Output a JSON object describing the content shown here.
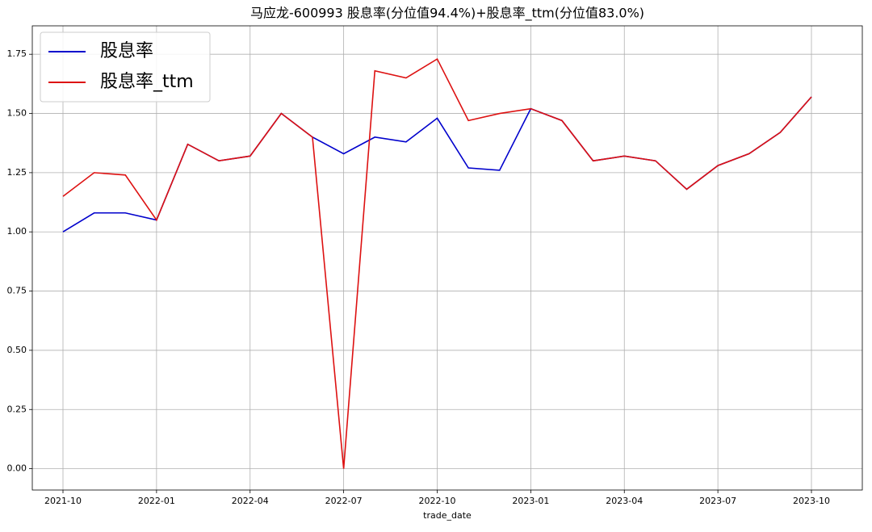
{
  "chart_data": {
    "type": "line",
    "title": "马应龙-600993 股息率(分位值94.4%)+股息率_ttm(分位值83.0%)",
    "xlabel": "trade_date",
    "x": [
      "2021-10",
      "2021-11",
      "2021-12",
      "2022-01",
      "2022-02",
      "2022-03",
      "2022-04",
      "2022-05",
      "2022-06",
      "2022-07",
      "2022-08",
      "2022-09",
      "2022-10",
      "2022-11",
      "2022-12",
      "2023-01",
      "2023-02",
      "2023-03",
      "2023-04",
      "2023-05",
      "2023-06",
      "2023-07",
      "2023-08",
      "2023-09",
      "2023-10"
    ],
    "series": [
      {
        "name": "股息率",
        "color": "#0000cc",
        "values": [
          1.0,
          1.08,
          1.08,
          1.05,
          1.37,
          1.3,
          1.32,
          1.5,
          1.4,
          1.33,
          1.4,
          1.38,
          1.48,
          1.27,
          1.26,
          1.52,
          1.47,
          1.3,
          1.32,
          1.3,
          1.18,
          1.28,
          1.33,
          1.42,
          1.57
        ]
      },
      {
        "name": "股息率_ttm",
        "color": "#dd1111",
        "values": [
          1.15,
          1.25,
          1.24,
          1.05,
          1.37,
          1.3,
          1.32,
          1.5,
          1.4,
          0.0,
          1.68,
          1.65,
          1.73,
          1.47,
          1.5,
          1.52,
          1.47,
          1.3,
          1.32,
          1.3,
          1.18,
          1.28,
          1.33,
          1.42,
          1.57
        ]
      }
    ],
    "xticks": [
      "2021-10",
      "2022-01",
      "2022-04",
      "2022-07",
      "2022-10",
      "2023-01",
      "2023-04",
      "2023-07",
      "2023-10"
    ],
    "ylim": [
      -0.09,
      1.87
    ],
    "yticks": [
      {
        "value": 0,
        "label": "0.00"
      },
      {
        "value": 0.25,
        "label": "0.25"
      },
      {
        "value": 0.5,
        "label": "0.50"
      },
      {
        "value": 0.75,
        "label": "0.75"
      },
      {
        "value": 1,
        "label": "1.00"
      },
      {
        "value": 1.25,
        "label": "1.25"
      },
      {
        "value": 1.5,
        "label": "1.50"
      },
      {
        "value": 1.75,
        "label": "1.75"
      }
    ],
    "grid": true,
    "legend": "upper left"
  }
}
